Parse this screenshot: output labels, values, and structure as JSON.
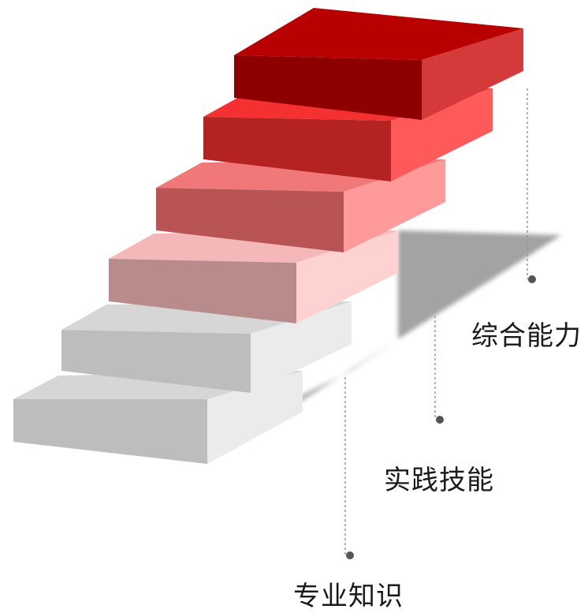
{
  "diagram": {
    "steps": [
      {
        "top": "#d6d6d6",
        "front": "#bdbdbd",
        "side": "#ebebeb"
      },
      {
        "top": "#d6d6d6",
        "front": "#bdbdbd",
        "side": "#ebebeb"
      },
      {
        "top": "#f5b8b8",
        "front": "#b98b8b",
        "side": "#ffd2d2"
      },
      {
        "top": "#f07878",
        "front": "#b85454",
        "side": "#ff9a9a"
      },
      {
        "top": "#f53030",
        "front": "#b52222",
        "side": "#ff5a5a"
      },
      {
        "top": "#b80000",
        "front": "#8e0000",
        "side": "#d43a3a"
      }
    ],
    "labels": [
      {
        "text": "专业知识"
      },
      {
        "text": "实践技能"
      },
      {
        "text": "综合能力"
      }
    ],
    "leader_color": "#9a9a9a",
    "dot_color": "#555555",
    "shadow_color": "#a3a3a3"
  }
}
